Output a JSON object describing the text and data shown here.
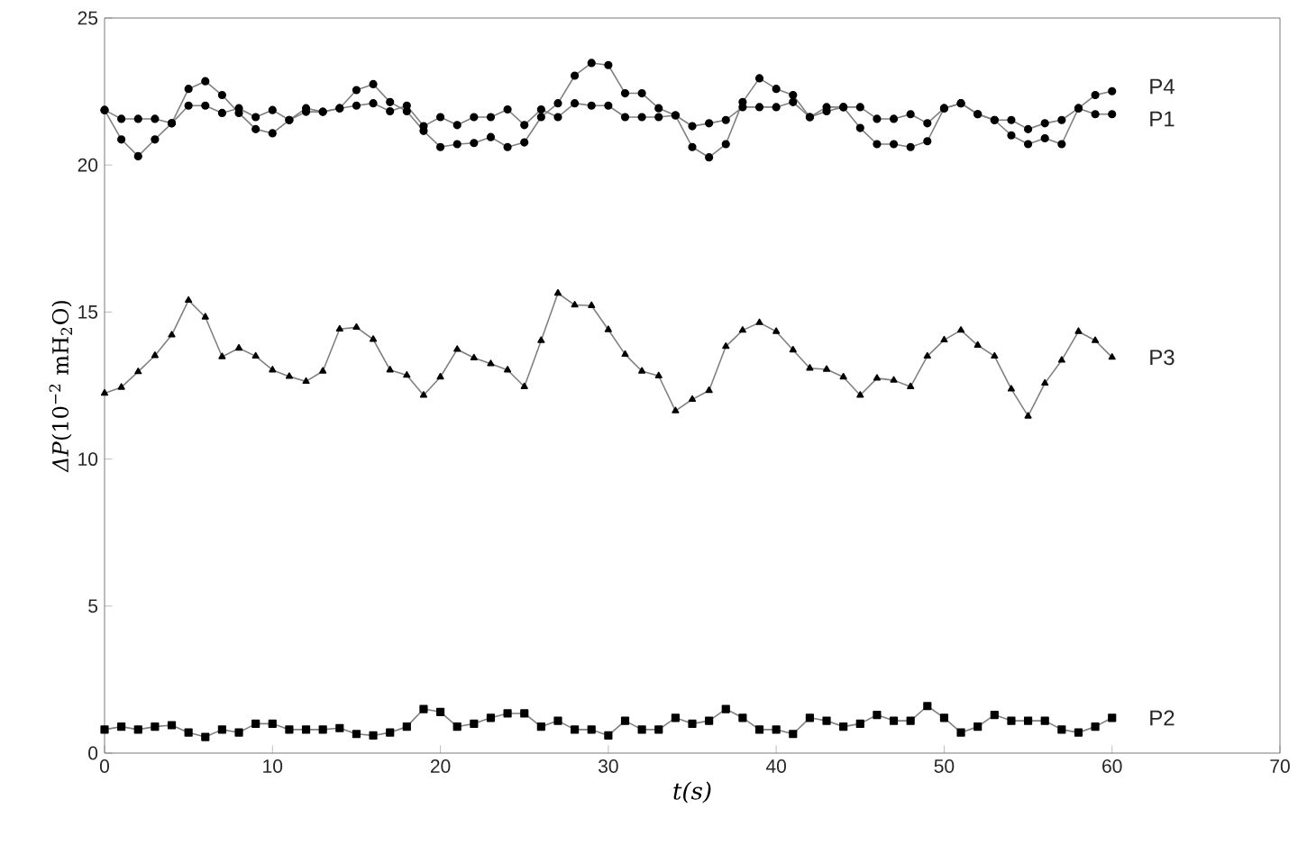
{
  "chart_data": {
    "type": "line",
    "xlabel": "t(s)",
    "ylabel": "*ΔP*(10$^{−2}$ mH$_{2}$O)",
    "x": [
      0,
      1,
      2,
      3,
      4,
      5,
      6,
      7,
      8,
      9,
      10,
      11,
      12,
      13,
      14,
      15,
      16,
      17,
      18,
      19,
      20,
      21,
      22,
      23,
      24,
      25,
      26,
      27,
      28,
      29,
      30,
      31,
      32,
      33,
      34,
      35,
      36,
      37,
      38,
      39,
      40,
      41,
      42,
      43,
      44,
      45,
      46,
      47,
      48,
      49,
      50,
      51,
      52,
      53,
      54,
      55,
      56,
      57,
      58,
      59,
      60
    ],
    "xlim": [
      0,
      70
    ],
    "ylim": [
      0,
      25
    ],
    "xticks": [
      0,
      10,
      20,
      30,
      40,
      50,
      60,
      70
    ],
    "yticks": [
      0,
      5,
      10,
      15,
      20,
      25
    ],
    "grid": false,
    "legend": false,
    "line_style": "solid",
    "series": [
      {
        "name": "P4",
        "color": "#808080",
        "marker": "circle",
        "values": [
          21.87,
          20.87,
          20.3,
          20.87,
          21.42,
          22.59,
          22.85,
          22.38,
          21.77,
          21.22,
          21.08,
          21.53,
          21.81,
          21.81,
          21.93,
          22.55,
          22.75,
          22.14,
          21.83,
          21.16,
          20.61,
          20.71,
          20.75,
          20.95,
          20.61,
          20.77,
          21.63,
          22.1,
          23.04,
          23.47,
          23.4,
          22.44,
          22.44,
          21.93,
          21.69,
          20.61,
          20.26,
          20.71,
          22.14,
          22.95,
          22.59,
          22.38,
          21.63,
          21.83,
          21.97,
          21.26,
          20.71,
          20.71,
          20.61,
          20.81,
          21.93,
          22.1,
          21.73,
          21.53,
          21.01,
          20.71,
          20.91,
          20.71,
          21.93,
          22.38,
          22.51
        ]
      },
      {
        "name": "P1",
        "color": "#808080",
        "marker": "circle",
        "values": [
          21.87,
          21.57,
          21.57,
          21.57,
          21.42,
          22.02,
          22.02,
          21.77,
          21.93,
          21.63,
          21.87,
          21.53,
          21.93,
          21.81,
          21.93,
          22.02,
          22.1,
          21.83,
          22.02,
          21.32,
          21.63,
          21.36,
          21.63,
          21.63,
          21.89,
          21.36,
          21.89,
          21.63,
          22.1,
          22.02,
          22.02,
          21.63,
          21.63,
          21.63,
          21.69,
          21.32,
          21.42,
          21.53,
          21.97,
          21.97,
          21.97,
          22.14,
          21.63,
          21.97,
          21.97,
          21.97,
          21.57,
          21.57,
          21.73,
          21.42,
          21.93,
          22.1,
          21.73,
          21.53,
          21.53,
          21.22,
          21.42,
          21.53,
          21.93,
          21.73,
          21.73
        ]
      },
      {
        "name": "P3",
        "color": "#808080",
        "marker": "triangle",
        "values": [
          12.24,
          12.44,
          12.97,
          13.52,
          14.22,
          15.4,
          14.83,
          13.48,
          13.77,
          13.5,
          13.03,
          12.81,
          12.64,
          12.99,
          14.42,
          14.48,
          14.07,
          13.03,
          12.85,
          12.17,
          12.79,
          13.73,
          13.44,
          13.24,
          13.03,
          12.46,
          14.03,
          15.64,
          15.24,
          15.22,
          14.4,
          13.56,
          12.99,
          12.83,
          11.64,
          12.03,
          12.33,
          13.83,
          14.38,
          14.64,
          14.34,
          13.71,
          13.09,
          13.05,
          12.79,
          12.17,
          12.75,
          12.68,
          12.46,
          13.5,
          14.05,
          14.38,
          13.87,
          13.5,
          12.38,
          11.46,
          12.58,
          13.36,
          14.34,
          14.03,
          13.46
        ]
      },
      {
        "name": "P2",
        "color": "#808080",
        "marker": "square",
        "values": [
          0.8,
          0.9,
          0.8,
          0.9,
          0.95,
          0.7,
          0.55,
          0.8,
          0.7,
          1.0,
          1.0,
          0.8,
          0.8,
          0.8,
          0.85,
          0.65,
          0.6,
          0.7,
          0.9,
          1.5,
          1.4,
          0.9,
          1.0,
          1.2,
          1.35,
          1.35,
          0.9,
          1.1,
          0.8,
          0.8,
          0.6,
          1.1,
          0.8,
          0.8,
          1.2,
          1.0,
          1.1,
          1.5,
          1.2,
          0.8,
          0.8,
          0.65,
          1.2,
          1.1,
          0.9,
          1.0,
          1.3,
          1.1,
          1.1,
          1.6,
          1.2,
          0.7,
          0.9,
          1.3,
          1.1,
          1.1,
          1.1,
          0.8,
          0.7,
          0.9,
          1.2
        ]
      }
    ]
  }
}
